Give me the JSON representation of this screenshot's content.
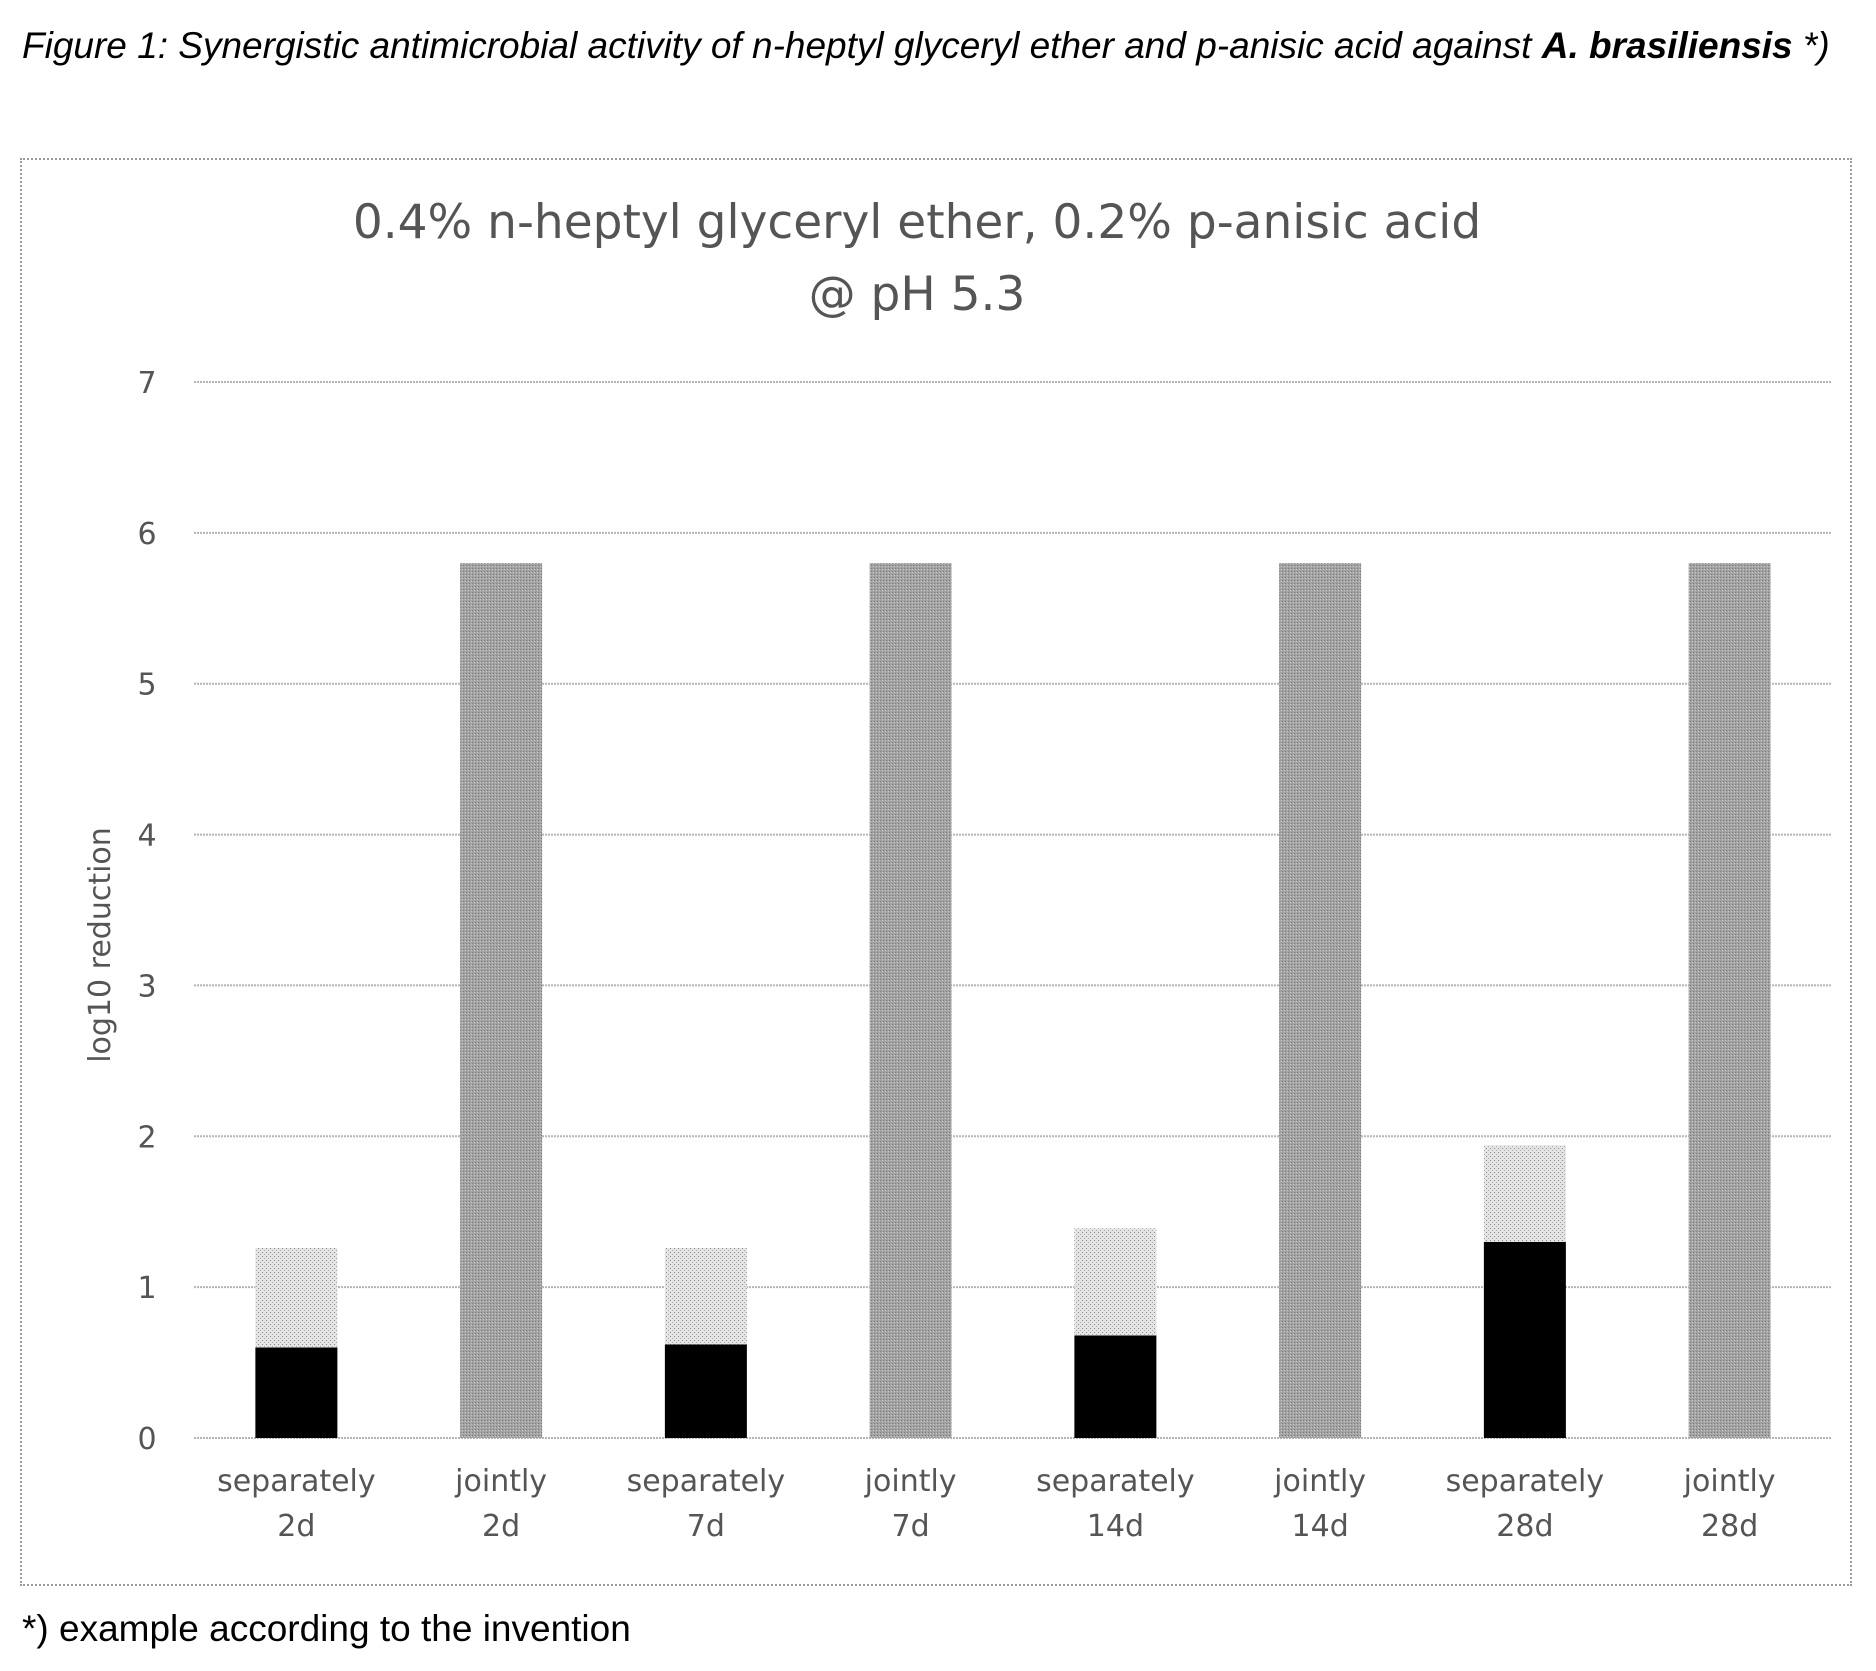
{
  "figure": {
    "caption_prefix": "Figure 1: Synergistic antimicrobial activity of n-heptyl glyceryl ether and p-anisic acid against ",
    "caption_bold": "A. brasiliensis",
    "caption_suffix": " *)",
    "footnote": "*) example according to the invention"
  },
  "chart_data": {
    "type": "bar",
    "stacked": true,
    "title_line1": "0.4% n-heptyl glyceryl ether, 0.2% p-anisic acid",
    "title_line2": "@ pH 5.3",
    "ylabel": "log10 reduction",
    "xlabel": "",
    "ylim": [
      0,
      7
    ],
    "yticks": [
      0,
      1,
      2,
      3,
      4,
      5,
      6,
      7
    ],
    "grid": true,
    "legend": "none",
    "categories": [
      [
        "separately",
        "2d"
      ],
      [
        "jointly",
        "2d"
      ],
      [
        "separately",
        "7d"
      ],
      [
        "jointly",
        "7d"
      ],
      [
        "separately",
        "14d"
      ],
      [
        "jointly",
        "14d"
      ],
      [
        "separately",
        "28d"
      ],
      [
        "jointly",
        "28d"
      ]
    ],
    "series": [
      {
        "values": [
          0.6,
          0,
          0.62,
          0,
          0.68,
          0,
          1.3,
          0
        ],
        "color": "#000000",
        "pattern": "solid"
      },
      {
        "values": [
          0.66,
          0,
          0.64,
          0,
          0.71,
          0,
          0.64,
          0
        ],
        "color": "#cfcfcf",
        "pattern": "dotted"
      },
      {
        "values": [
          0,
          5.8,
          0,
          5.8,
          0,
          5.8,
          0,
          5.8
        ],
        "color": "#9c9c9c",
        "pattern": "dense"
      }
    ]
  }
}
